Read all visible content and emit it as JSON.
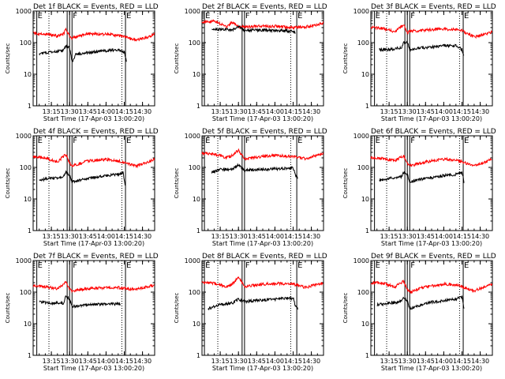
{
  "figure": {
    "xlabel": "Start Time (17-Apr-03 13:00:20)",
    "ylabel": "Counts/sec",
    "legend_text": "BLACK = Events, RED = LLD",
    "colors": {
      "events": "#000000",
      "lld": "#ff0000"
    },
    "markers": [
      "E",
      "F",
      "E"
    ]
  },
  "chart_data": [
    {
      "type": "line",
      "title": "Det 1f BLACK = Events, RED = LLD",
      "x_ticks": [
        "13:15",
        "13:30",
        "13:45",
        "14:00",
        "14:15",
        "14:30"
      ],
      "y_ticks": [
        "1",
        "10",
        "100",
        "1000"
      ],
      "ylim": [
        1,
        1000
      ],
      "yscale": "log",
      "xlim": [
        "13:00",
        "14:40"
      ],
      "vertical_markers": [
        {
          "time": "13:03",
          "label": "E",
          "style": "solid"
        },
        {
          "time": "13:13",
          "style": "dotted"
        },
        {
          "time": "13:28",
          "style": "solid"
        },
        {
          "time": "13:30",
          "style": "solid"
        },
        {
          "time": "13:32",
          "label": "F",
          "style": "solid"
        },
        {
          "time": "14:13",
          "style": "dotted"
        },
        {
          "time": "14:16",
          "label": "E",
          "style": "solid"
        }
      ],
      "series": [
        {
          "name": "LLD",
          "color": "#ff0000",
          "x": [
            "13:00",
            "13:10",
            "13:20",
            "13:25",
            "13:27",
            "13:30",
            "13:32",
            "13:35",
            "13:45",
            "14:00",
            "14:10",
            "14:15",
            "14:25",
            "14:35",
            "14:40"
          ],
          "y": [
            200,
            190,
            160,
            190,
            260,
            160,
            140,
            150,
            190,
            185,
            170,
            150,
            120,
            150,
            200
          ]
        },
        {
          "name": "Events",
          "color": "#000000",
          "x": [
            "13:05",
            "13:15",
            "13:25",
            "13:27",
            "13:30",
            "13:32",
            "13:35",
            "13:45",
            "14:00",
            "14:10",
            "14:15",
            "14:17"
          ],
          "y": [
            45,
            50,
            55,
            80,
            70,
            25,
            42,
            48,
            55,
            60,
            50,
            25
          ]
        }
      ]
    },
    {
      "type": "line",
      "title": "Det 2f BLACK = Events, RED = LLD",
      "x_ticks": [
        "13:15",
        "13:30",
        "13:45",
        "14:00",
        "14:15",
        "14:30"
      ],
      "y_ticks": [
        "1",
        "10",
        "100",
        "1000"
      ],
      "ylim": [
        1,
        1000
      ],
      "yscale": "log",
      "xlim": [
        "13:00",
        "14:40"
      ],
      "vertical_markers": [
        {
          "time": "13:02",
          "label": "E",
          "style": "solid"
        },
        {
          "time": "13:13",
          "style": "dotted"
        },
        {
          "time": "13:33",
          "style": "solid"
        },
        {
          "time": "13:35",
          "label": "F",
          "style": "solid"
        },
        {
          "time": "14:13",
          "style": "dotted"
        },
        {
          "time": "14:18",
          "label": "E",
          "style": "solid"
        }
      ],
      "series": [
        {
          "name": "LLD",
          "color": "#ff0000",
          "x": [
            "13:00",
            "13:10",
            "13:20",
            "13:25",
            "13:30",
            "13:35",
            "13:45",
            "14:00",
            "14:15",
            "14:30",
            "14:40"
          ],
          "y": [
            450,
            480,
            320,
            440,
            320,
            310,
            330,
            330,
            300,
            330,
            420
          ]
        },
        {
          "name": "Events",
          "color": "#000000",
          "x": [
            "13:08",
            "13:15",
            "13:25",
            "13:30",
            "13:35",
            "13:45",
            "14:00",
            "14:15",
            "14:17"
          ],
          "y": [
            250,
            260,
            250,
            320,
            240,
            250,
            245,
            230,
            200
          ]
        }
      ]
    },
    {
      "type": "line",
      "title": "Det 3f BLACK = Events, RED = LLD",
      "x_ticks": [
        "13:15",
        "13:30",
        "13:45",
        "14:00",
        "14:15",
        "14:30"
      ],
      "y_ticks": [
        "1",
        "10",
        "100",
        "1000"
      ],
      "ylim": [
        1,
        1000
      ],
      "yscale": "log",
      "xlim": [
        "13:00",
        "14:40"
      ],
      "vertical_markers": [
        {
          "time": "13:03",
          "label": "E",
          "style": "solid"
        },
        {
          "time": "13:13",
          "style": "dotted"
        },
        {
          "time": "13:28",
          "style": "solid"
        },
        {
          "time": "13:30",
          "style": "solid"
        },
        {
          "time": "13:32",
          "label": "F",
          "style": "solid"
        },
        {
          "time": "14:13",
          "style": "dotted"
        },
        {
          "time": "14:16",
          "label": "E",
          "style": "solid"
        }
      ],
      "series": [
        {
          "name": "LLD",
          "color": "#ff0000",
          "x": [
            "13:00",
            "13:10",
            "13:20",
            "13:27",
            "13:30",
            "13:32",
            "13:45",
            "14:00",
            "14:10",
            "14:15",
            "14:25",
            "14:40"
          ],
          "y": [
            300,
            280,
            220,
            380,
            200,
            230,
            250,
            270,
            260,
            240,
            150,
            220
          ]
        },
        {
          "name": "Events",
          "color": "#000000",
          "x": [
            "13:07",
            "13:15",
            "13:25",
            "13:27",
            "13:30",
            "13:32",
            "13:45",
            "14:00",
            "14:10",
            "14:15",
            "14:17"
          ],
          "y": [
            60,
            60,
            70,
            100,
            110,
            60,
            70,
            80,
            80,
            60,
            35
          ]
        }
      ]
    },
    {
      "type": "line",
      "title": "Det 4f BLACK = Events, RED = LLD",
      "x_ticks": [
        "13:15",
        "13:30",
        "13:45",
        "14:00",
        "14:15",
        "14:30"
      ],
      "y_ticks": [
        "1",
        "10",
        "100",
        "1000"
      ],
      "ylim": [
        1,
        1000
      ],
      "yscale": "log",
      "xlim": [
        "13:00",
        "14:40"
      ],
      "vertical_markers": [
        {
          "time": "13:03",
          "label": "E",
          "style": "solid"
        },
        {
          "time": "13:13",
          "style": "dotted"
        },
        {
          "time": "13:28",
          "style": "solid"
        },
        {
          "time": "13:30",
          "style": "solid"
        },
        {
          "time": "13:32",
          "label": "F",
          "style": "solid"
        },
        {
          "time": "14:13",
          "style": "dotted"
        },
        {
          "time": "14:16",
          "label": "E",
          "style": "solid"
        }
      ],
      "series": [
        {
          "name": "LLD",
          "color": "#ff0000",
          "x": [
            "13:00",
            "13:10",
            "13:20",
            "13:27",
            "13:30",
            "13:32",
            "13:45",
            "14:00",
            "14:10",
            "14:15",
            "14:25",
            "14:40"
          ],
          "y": [
            220,
            200,
            150,
            260,
            140,
            110,
            160,
            180,
            160,
            140,
            110,
            180
          ]
        },
        {
          "name": "Events",
          "color": "#000000",
          "x": [
            "13:05",
            "13:15",
            "13:25",
            "13:27",
            "13:30",
            "13:32",
            "13:45",
            "14:00",
            "14:10",
            "14:14",
            "14:16"
          ],
          "y": [
            40,
            45,
            50,
            70,
            55,
            35,
            45,
            55,
            60,
            70,
            25
          ]
        }
      ]
    },
    {
      "type": "line",
      "title": "Det 5f BLACK = Events, RED = LLD",
      "x_ticks": [
        "13:15",
        "13:30",
        "13:45",
        "14:00",
        "14:15",
        "14:30"
      ],
      "y_ticks": [
        "1",
        "10",
        "100",
        "1000"
      ],
      "ylim": [
        1,
        1000
      ],
      "yscale": "log",
      "xlim": [
        "13:00",
        "14:40"
      ],
      "vertical_markers": [
        {
          "time": "13:02",
          "label": "E",
          "style": "solid"
        },
        {
          "time": "13:13",
          "style": "dotted"
        },
        {
          "time": "13:33",
          "style": "solid"
        },
        {
          "time": "13:35",
          "label": "F",
          "style": "solid"
        },
        {
          "time": "14:13",
          "style": "dotted"
        },
        {
          "time": "14:18",
          "label": "E",
          "style": "solid"
        }
      ],
      "series": [
        {
          "name": "LLD",
          "color": "#ff0000",
          "x": [
            "13:00",
            "13:10",
            "13:20",
            "13:25",
            "13:30",
            "13:35",
            "13:45",
            "14:00",
            "14:15",
            "14:25",
            "14:40"
          ],
          "y": [
            280,
            270,
            200,
            240,
            350,
            180,
            210,
            240,
            220,
            190,
            280
          ]
        },
        {
          "name": "Events",
          "color": "#000000",
          "x": [
            "13:08",
            "13:15",
            "13:25",
            "13:30",
            "13:35",
            "13:45",
            "14:00",
            "14:15",
            "14:17",
            "14:19"
          ],
          "y": [
            70,
            85,
            90,
            120,
            80,
            85,
            90,
            95,
            55,
            45
          ]
        }
      ]
    },
    {
      "type": "line",
      "title": "Det 6f BLACK = Events, RED = LLD",
      "x_ticks": [
        "13:15",
        "13:30",
        "13:45",
        "14:00",
        "14:15",
        "14:30"
      ],
      "y_ticks": [
        "1",
        "10",
        "100",
        "1000"
      ],
      "ylim": [
        1,
        1000
      ],
      "yscale": "log",
      "xlim": [
        "13:00",
        "14:40"
      ],
      "vertical_markers": [
        {
          "time": "13:03",
          "label": "E",
          "style": "solid"
        },
        {
          "time": "13:13",
          "style": "dotted"
        },
        {
          "time": "13:28",
          "style": "solid"
        },
        {
          "time": "13:30",
          "style": "solid"
        },
        {
          "time": "13:32",
          "label": "F",
          "style": "solid"
        },
        {
          "time": "14:13",
          "style": "dotted"
        },
        {
          "time": "14:16",
          "label": "E",
          "style": "solid"
        }
      ],
      "series": [
        {
          "name": "LLD",
          "color": "#ff0000",
          "x": [
            "13:00",
            "13:10",
            "13:20",
            "13:27",
            "13:30",
            "13:32",
            "13:45",
            "14:00",
            "14:10",
            "14:15",
            "14:25",
            "14:40"
          ],
          "y": [
            200,
            190,
            160,
            240,
            130,
            110,
            150,
            180,
            170,
            150,
            110,
            180
          ]
        },
        {
          "name": "Events",
          "color": "#000000",
          "x": [
            "13:07",
            "13:15",
            "13:25",
            "13:27",
            "13:30",
            "13:32",
            "13:45",
            "14:00",
            "14:10",
            "14:15",
            "14:17"
          ],
          "y": [
            40,
            45,
            50,
            70,
            60,
            35,
            45,
            55,
            60,
            70,
            30
          ]
        }
      ]
    },
    {
      "type": "line",
      "title": "Det 7f BLACK = Events, RED = LLD",
      "x_ticks": [
        "13:15",
        "13:30",
        "13:45",
        "14:00",
        "14:15",
        "14:30"
      ],
      "y_ticks": [
        "1",
        "10",
        "100",
        "1000"
      ],
      "ylim": [
        1,
        1000
      ],
      "yscale": "log",
      "xlim": [
        "13:00",
        "14:40"
      ],
      "vertical_markers": [
        {
          "time": "13:03",
          "label": "E",
          "style": "solid"
        },
        {
          "time": "13:13",
          "style": "dotted"
        },
        {
          "time": "13:28",
          "style": "solid"
        },
        {
          "time": "13:30",
          "style": "solid"
        },
        {
          "time": "13:32",
          "label": "F",
          "style": "solid"
        },
        {
          "time": "14:13",
          "style": "dotted"
        },
        {
          "time": "14:16",
          "label": "E",
          "style": "solid"
        }
      ],
      "series": [
        {
          "name": "LLD",
          "color": "#ff0000",
          "x": [
            "13:00",
            "13:10",
            "13:20",
            "13:27",
            "13:30",
            "13:32",
            "13:45",
            "14:00",
            "14:10",
            "14:15",
            "14:25",
            "14:40"
          ],
          "y": [
            160,
            150,
            130,
            210,
            120,
            110,
            130,
            140,
            140,
            130,
            120,
            170
          ]
        },
        {
          "name": "Events",
          "color": "#000000",
          "x": [
            "13:05",
            "13:15",
            "13:25",
            "13:27",
            "13:30",
            "13:32",
            "13:45",
            "14:00",
            "14:10",
            "14:12"
          ],
          "y": [
            50,
            45,
            45,
            80,
            60,
            35,
            40,
            42,
            42,
            40
          ]
        }
      ]
    },
    {
      "type": "line",
      "title": "Det 8f BLACK = Events, RED = LLD",
      "x_ticks": [
        "13:15",
        "13:30",
        "13:45",
        "14:00",
        "14:15",
        "14:30"
      ],
      "y_ticks": [
        "1",
        "10",
        "100",
        "1000"
      ],
      "ylim": [
        1,
        1000
      ],
      "yscale": "log",
      "xlim": [
        "13:00",
        "14:40"
      ],
      "vertical_markers": [
        {
          "time": "13:02",
          "label": "E",
          "style": "solid"
        },
        {
          "time": "13:13",
          "style": "dotted"
        },
        {
          "time": "13:33",
          "style": "solid"
        },
        {
          "time": "13:35",
          "label": "F",
          "style": "solid"
        },
        {
          "time": "14:13",
          "style": "dotted"
        },
        {
          "time": "14:18",
          "label": "E",
          "style": "solid"
        }
      ],
      "series": [
        {
          "name": "LLD",
          "color": "#ff0000",
          "x": [
            "13:00",
            "13:10",
            "13:20",
            "13:25",
            "13:30",
            "13:35",
            "13:45",
            "14:00",
            "14:15",
            "14:25",
            "14:40"
          ],
          "y": [
            200,
            190,
            150,
            180,
            300,
            150,
            170,
            190,
            180,
            140,
            200
          ]
        },
        {
          "name": "Events",
          "color": "#000000",
          "x": [
            "13:05",
            "13:15",
            "13:25",
            "13:30",
            "13:35",
            "13:45",
            "14:00",
            "14:15",
            "14:17",
            "14:19"
          ],
          "y": [
            30,
            40,
            45,
            60,
            50,
            55,
            60,
            65,
            35,
            30
          ]
        }
      ]
    },
    {
      "type": "line",
      "title": "Det 9f BLACK = Events, RED = LLD",
      "x_ticks": [
        "13:15",
        "13:30",
        "13:45",
        "14:00",
        "14:15",
        "14:30"
      ],
      "y_ticks": [
        "1",
        "10",
        "100",
        "1000"
      ],
      "ylim": [
        1,
        1000
      ],
      "yscale": "log",
      "xlim": [
        "13:00",
        "14:40"
      ],
      "vertical_markers": [
        {
          "time": "13:03",
          "label": "E",
          "style": "solid"
        },
        {
          "time": "13:13",
          "style": "dotted"
        },
        {
          "time": "13:28",
          "style": "solid"
        },
        {
          "time": "13:30",
          "style": "solid"
        },
        {
          "time": "13:32",
          "label": "F",
          "style": "solid"
        },
        {
          "time": "14:13",
          "style": "dotted"
        },
        {
          "time": "14:16",
          "label": "E",
          "style": "solid"
        }
      ],
      "series": [
        {
          "name": "LLD",
          "color": "#ff0000",
          "x": [
            "13:00",
            "13:10",
            "13:20",
            "13:27",
            "13:30",
            "13:32",
            "13:45",
            "14:00",
            "14:10",
            "14:15",
            "14:25",
            "14:40"
          ],
          "y": [
            200,
            190,
            150,
            220,
            120,
            100,
            150,
            180,
            170,
            150,
            110,
            180
          ]
        },
        {
          "name": "Events",
          "color": "#000000",
          "x": [
            "13:05",
            "13:15",
            "13:25",
            "13:27",
            "13:30",
            "13:32",
            "13:45",
            "14:00",
            "14:10",
            "14:15",
            "14:17"
          ],
          "y": [
            40,
            45,
            50,
            70,
            55,
            30,
            45,
            55,
            60,
            70,
            25
          ]
        }
      ]
    }
  ]
}
